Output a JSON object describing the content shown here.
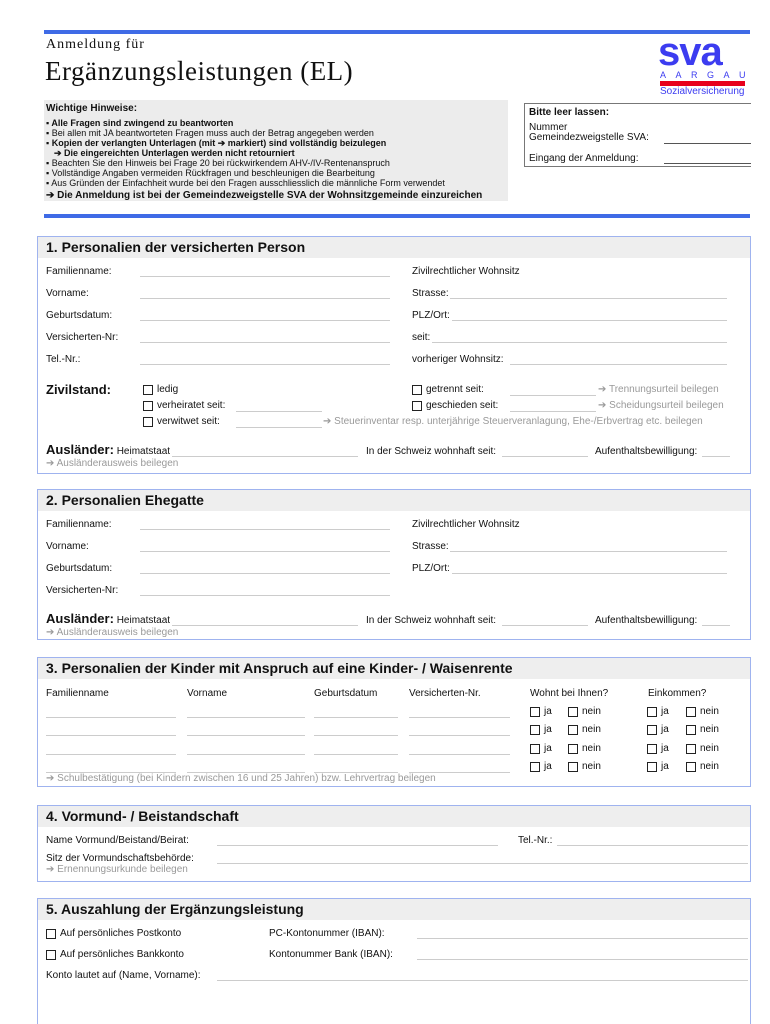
{
  "header": {
    "subtitle": "Anmeldung für",
    "title": "Ergänzungsleistungen (EL)",
    "logo": {
      "main": "sva",
      "region": "AARGAU",
      "sub": "Sozialversicherung",
      "colors": {
        "blue": "#3c3cf0",
        "red": "#e8001c"
      }
    }
  },
  "hints": {
    "title": "Wichtige Hinweise:",
    "items": [
      "Alle Fragen sind zwingend zu beantworten",
      "Bei allen mit JA beantworteten Fragen muss auch der Betrag angegeben werden",
      "Kopien der verlangten Unterlagen (mit ➔ markiert) sind vollständig beizulegen",
      "➔ Die eingereichten Unterlagen werden nicht retourniert",
      "Beachten Sie den Hinweis bei Frage 20 bei rückwirkendem AHV-/IV-Rentenanspruch",
      "Vollständige Angaben vermeiden Rückfragen und beschleunigen die Bearbeitung",
      "Aus Gründen der Einfachheit wurde bei den Fragen ausschliesslich die männliche Form verwendet"
    ],
    "footer": "➔ Die Anmeldung ist bei der Gemeindezweigstelle SVA der Wohnsitzgemeinde einzureichen"
  },
  "office": {
    "title": "Bitte leer lassen:",
    "nummer": "Nummer",
    "zweigstelle": "Gemeindezweigstelle SVA:",
    "eingang": "Eingang der Anmeldung:"
  },
  "s1": {
    "title": "1. Personalien der versicherten Person",
    "left": [
      "Familienname:",
      "Vorname:",
      "Geburtsdatum:",
      "Versicherten-Nr:",
      "Tel.-Nr.:"
    ],
    "right": [
      "Zivilrechtlicher Wohnsitz",
      "Strasse:",
      "PLZ/Ort:",
      "seit:",
      "vorheriger Wohnsitz:"
    ],
    "zivilstand": "Zivilstand:",
    "ledig": "ledig",
    "verheiratet": "verheiratet seit:",
    "verwitwet": "verwitwet seit:",
    "getrennt": "getrennt seit:",
    "geschieden": "geschieden seit:",
    "note_getrennt": "➔ Trennungsurteil beilegen",
    "note_geschieden": "➔ Scheidungsurteil beilegen",
    "note_verwitwet": "➔ Steuerinventar resp. unterjährige Steuerveranlagung, Ehe-/Erbvertrag etc. beilegen",
    "auslaender": "Ausländer:",
    "heimatstaat": "Heimatstaat",
    "wohnhaft": "In der Schweiz wohnhaft seit:",
    "bewilligung": "Aufenthaltsbewilligung:",
    "note_ausweis": "➔ Ausländerausweis beilegen"
  },
  "s2": {
    "title": "2. Personalien Ehegatte",
    "left": [
      "Familienname:",
      "Vorname:",
      "Geburtsdatum:",
      "Versicherten-Nr:"
    ],
    "right": [
      "Zivilrechtlicher Wohnsitz",
      "Strasse:",
      "PLZ/Ort:"
    ],
    "auslaender": "Ausländer:",
    "heimatstaat": "Heimatstaat",
    "wohnhaft": "In der Schweiz wohnhaft seit:",
    "bewilligung": "Aufenthaltsbewilligung:",
    "note_ausweis": "➔ Ausländerausweis beilegen"
  },
  "s3": {
    "title": "3. Personalien der Kinder mit Anspruch auf eine Kinder- / Waisenrente",
    "columns": [
      "Familienname",
      "Vorname",
      "Geburtsdatum",
      "Versicherten-Nr.",
      "Wohnt bei Ihnen?",
      "Einkommen?"
    ],
    "ja": "ja",
    "nein": "nein",
    "note": "➔ Schulbestätigung (bei Kindern zwischen 16 und 25 Jahren) bzw. Lehrvertrag beilegen"
  },
  "s4": {
    "title": "4. Vormund- / Beistandschaft",
    "name": "Name Vormund/Beistand/Beirat:",
    "tel": "Tel.-Nr.:",
    "sitz": "Sitz der Vormundschaftsbehörde:",
    "note": "➔ Ernennungsurkunde beilegen"
  },
  "s5": {
    "title": "5. Auszahlung der Ergänzungsleistung",
    "post": "Auf persönliches Postkonto",
    "bank": "Auf persönliches Bankkonto",
    "pc": "PC-Kontonummer (IBAN):",
    "bankiban": "Kontonummer Bank (IBAN):",
    "konto": "Konto lautet auf (Name, Vorname):"
  }
}
